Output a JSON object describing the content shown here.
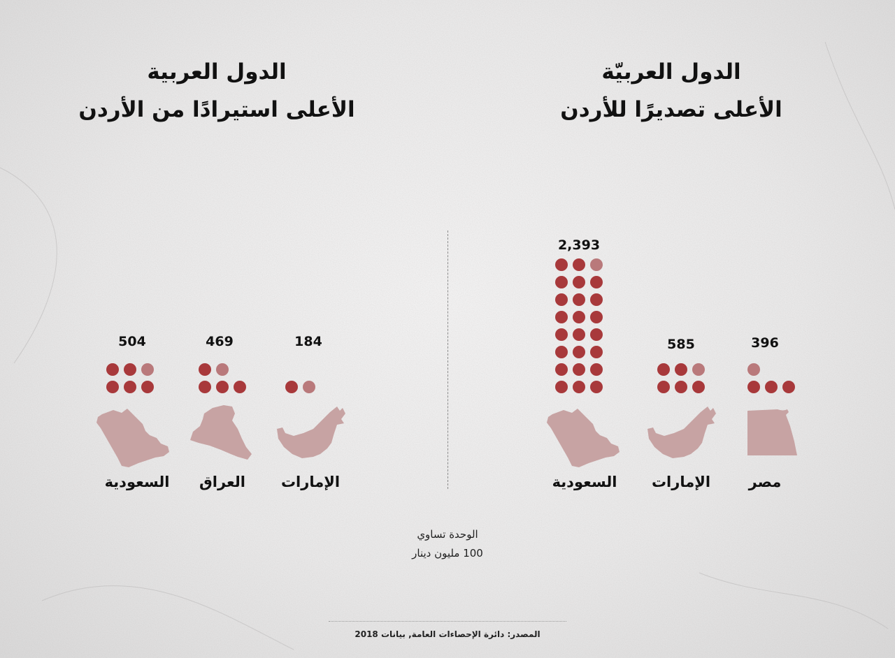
{
  "exports_panel": {
    "title_line1": "الدول العربيّة",
    "title_line2": "الأعلى تصديرًا للأردن"
  },
  "imports_panel": {
    "title_line1": "الدول العربية",
    "title_line2": "الأعلى استيرادًا من الأردن"
  },
  "unit_note": {
    "line1": "الوحدة تساوي",
    "line2": "100 مليون دينار"
  },
  "source": "المصدر: دائرة الإحصاءات العامة, بيانات 2018",
  "colors": {
    "dot": "#a8393b",
    "dot_partial": "#b9797b",
    "map_fill": "#c7a3a3",
    "divider": "#8b8b8b"
  },
  "chart_data": [
    {
      "type": "pictogram",
      "title": "الدول العربيّة الأعلى تصديرًا للأردن",
      "unit_value": 100,
      "unit_label": "مليون دينار",
      "categories": [
        "مصر",
        "الإمارات",
        "السعودية"
      ],
      "values": [
        396,
        585,
        2393
      ],
      "value_labels": [
        "396",
        "585",
        "2,393"
      ],
      "icons": [
        "egypt-map-icon",
        "uae-map-icon",
        "saudi-map-icon"
      ]
    },
    {
      "type": "pictogram",
      "title": "الدول العربية الأعلى استيرادًا من الأردن",
      "unit_value": 100,
      "unit_label": "مليون دينار",
      "categories": [
        "الإمارات",
        "العراق",
        "السعودية"
      ],
      "values": [
        184,
        469,
        504
      ],
      "value_labels": [
        "184",
        "469",
        "504"
      ],
      "icons": [
        "uae-map-icon",
        "iraq-map-icon",
        "saudi-map-icon"
      ]
    }
  ]
}
